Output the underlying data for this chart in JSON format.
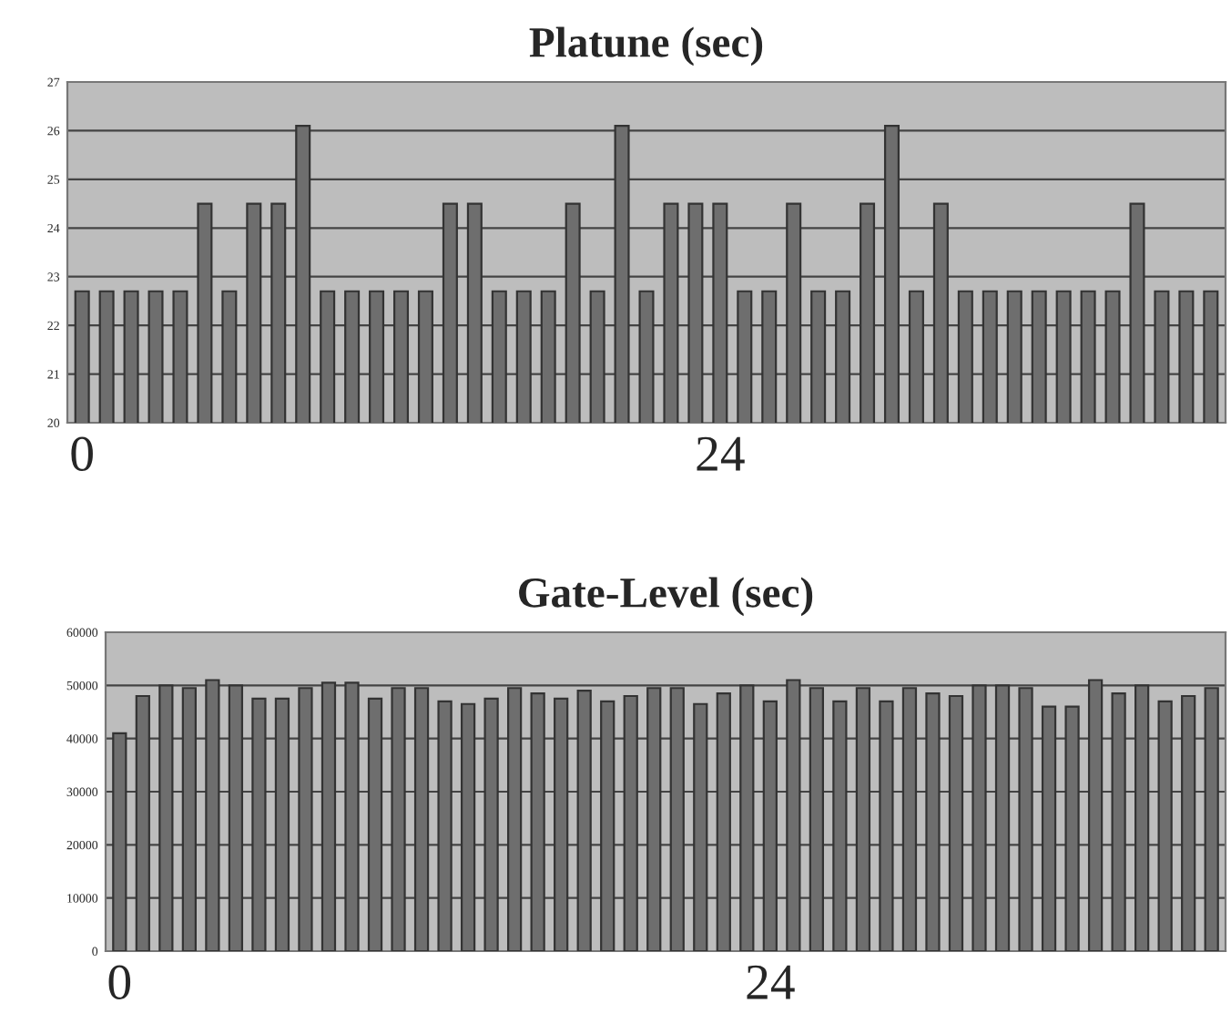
{
  "chart_data": [
    {
      "type": "bar",
      "title": "Platune (sec)",
      "color": "#6e6e6e",
      "grid": "y",
      "ylim": [
        20,
        27
      ],
      "yticks": [
        20,
        21,
        22,
        23,
        24,
        25,
        26,
        27
      ],
      "categories": [
        "0",
        null,
        null,
        null,
        null,
        null,
        null,
        null,
        null,
        null,
        null,
        null,
        null,
        null,
        null,
        null,
        null,
        null,
        null,
        null,
        null,
        null,
        null,
        null,
        null,
        null,
        "24",
        null,
        null,
        null,
        null,
        null,
        null,
        null,
        null,
        null,
        null,
        null,
        null,
        null,
        null,
        null,
        null,
        null,
        null,
        null,
        null
      ],
      "values": [
        22.7,
        22.7,
        22.7,
        22.7,
        22.7,
        24.5,
        22.7,
        24.5,
        24.5,
        26.1,
        22.7,
        22.7,
        22.7,
        22.7,
        22.7,
        24.5,
        24.5,
        22.7,
        22.7,
        22.7,
        24.5,
        22.7,
        26.1,
        22.7,
        24.5,
        24.5,
        24.5,
        22.7,
        22.7,
        24.5,
        22.7,
        22.7,
        24.5,
        26.1,
        22.7,
        24.5,
        22.7,
        22.7,
        22.7,
        22.7,
        22.7,
        22.7,
        22.7,
        24.5,
        22.7,
        22.7,
        22.7
      ]
    },
    {
      "type": "bar",
      "title": "Gate-Level (sec)",
      "color": "#6e6e6e",
      "grid": "y",
      "ylim": [
        0,
        60000
      ],
      "yticks": [
        0,
        10000,
        20000,
        30000,
        40000,
        50000,
        60000
      ],
      "categories": [
        "0",
        null,
        null,
        null,
        null,
        null,
        null,
        null,
        null,
        null,
        null,
        null,
        null,
        null,
        null,
        null,
        null,
        null,
        null,
        null,
        null,
        null,
        null,
        null,
        null,
        null,
        null,
        null,
        "24",
        null,
        null,
        null,
        null,
        null,
        null,
        null,
        null,
        null,
        null,
        null,
        null,
        null,
        null,
        null,
        null,
        null,
        null,
        null
      ],
      "values": [
        41000,
        48000,
        50000,
        49500,
        51000,
        50000,
        47500,
        47500,
        49500,
        50500,
        50500,
        47500,
        49500,
        49500,
        47000,
        46500,
        47500,
        49500,
        48500,
        47500,
        49000,
        47000,
        48000,
        49500,
        49500,
        46500,
        48500,
        50000,
        47000,
        51000,
        49500,
        47000,
        49500,
        47000,
        49500,
        48500,
        48000,
        50000,
        50000,
        49500,
        46000,
        46000,
        51000,
        48500,
        50000,
        47000,
        48000,
        49500
      ]
    }
  ]
}
